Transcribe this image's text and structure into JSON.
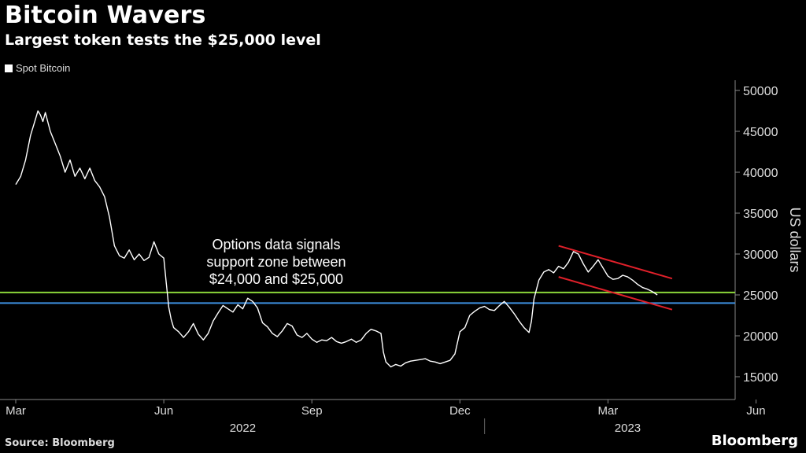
{
  "header": {
    "title": "Bitcoin Wavers",
    "subtitle": "Largest token tests the $25,000 level"
  },
  "footer": {
    "source": "Source: Bloomberg",
    "brand": "Bloomberg"
  },
  "colors": {
    "line": "#ffffff",
    "support_upper": "#8cd63a",
    "support_lower": "#3d8fe0",
    "channel": "#e0202a"
  },
  "chart_data": {
    "type": "line",
    "title": "Bitcoin Wavers",
    "subtitle": "Largest token tests the $25,000 level",
    "ylabel": "US dollars",
    "ylim": [
      12000,
      52000
    ],
    "yticks": [
      15000,
      20000,
      25000,
      30000,
      35000,
      40000,
      45000,
      50000
    ],
    "xrange": [
      0,
      15.8
    ],
    "month_ticks": [
      {
        "x": 0,
        "label": "Mar"
      },
      {
        "x": 3,
        "label": "Jun"
      },
      {
        "x": 6,
        "label": "Sep"
      },
      {
        "x": 9,
        "label": "Dec"
      },
      {
        "x": 12,
        "label": "Mar"
      },
      {
        "x": 15,
        "label": "Jun"
      }
    ],
    "year_labels": [
      {
        "x": 4.6,
        "label": "2022"
      },
      {
        "x": 12.4,
        "label": "2023"
      }
    ],
    "year_divider_x": 9.5,
    "legend": [
      "Spot Bitcoin"
    ],
    "series": [
      {
        "name": "Spot Bitcoin",
        "points": [
          [
            0.0,
            38500
          ],
          [
            0.1,
            39500
          ],
          [
            0.2,
            41500
          ],
          [
            0.3,
            44500
          ],
          [
            0.4,
            46500
          ],
          [
            0.45,
            47500
          ],
          [
            0.5,
            47000
          ],
          [
            0.55,
            46200
          ],
          [
            0.6,
            47300
          ],
          [
            0.7,
            45000
          ],
          [
            0.8,
            43500
          ],
          [
            0.9,
            42000
          ],
          [
            1.0,
            40000
          ],
          [
            1.1,
            41500
          ],
          [
            1.2,
            39500
          ],
          [
            1.3,
            40500
          ],
          [
            1.4,
            39200
          ],
          [
            1.5,
            40500
          ],
          [
            1.6,
            39000
          ],
          [
            1.7,
            38200
          ],
          [
            1.8,
            37000
          ],
          [
            1.9,
            34500
          ],
          [
            2.0,
            31000
          ],
          [
            2.1,
            29800
          ],
          [
            2.2,
            29500
          ],
          [
            2.3,
            30500
          ],
          [
            2.4,
            29300
          ],
          [
            2.5,
            30000
          ],
          [
            2.6,
            29200
          ],
          [
            2.7,
            29600
          ],
          [
            2.8,
            31500
          ],
          [
            2.9,
            30000
          ],
          [
            3.0,
            29500
          ],
          [
            3.05,
            26500
          ],
          [
            3.1,
            23500
          ],
          [
            3.15,
            22000
          ],
          [
            3.2,
            21000
          ],
          [
            3.3,
            20500
          ],
          [
            3.4,
            19800
          ],
          [
            3.5,
            20500
          ],
          [
            3.6,
            21500
          ],
          [
            3.7,
            20200
          ],
          [
            3.8,
            19500
          ],
          [
            3.9,
            20300
          ],
          [
            4.0,
            21800
          ],
          [
            4.1,
            22800
          ],
          [
            4.2,
            23700
          ],
          [
            4.3,
            23300
          ],
          [
            4.4,
            22900
          ],
          [
            4.5,
            23800
          ],
          [
            4.6,
            23300
          ],
          [
            4.7,
            24600
          ],
          [
            4.8,
            24200
          ],
          [
            4.9,
            23400
          ],
          [
            5.0,
            21600
          ],
          [
            5.1,
            21100
          ],
          [
            5.2,
            20300
          ],
          [
            5.3,
            19900
          ],
          [
            5.4,
            20600
          ],
          [
            5.5,
            21500
          ],
          [
            5.6,
            21200
          ],
          [
            5.7,
            20100
          ],
          [
            5.8,
            19800
          ],
          [
            5.9,
            20300
          ],
          [
            6.0,
            19600
          ],
          [
            6.1,
            19200
          ],
          [
            6.2,
            19500
          ],
          [
            6.3,
            19400
          ],
          [
            6.4,
            19800
          ],
          [
            6.5,
            19300
          ],
          [
            6.6,
            19100
          ],
          [
            6.7,
            19300
          ],
          [
            6.8,
            19600
          ],
          [
            6.9,
            19200
          ],
          [
            7.0,
            19500
          ],
          [
            7.1,
            20300
          ],
          [
            7.2,
            20800
          ],
          [
            7.3,
            20600
          ],
          [
            7.4,
            20300
          ],
          [
            7.45,
            18000
          ],
          [
            7.5,
            16800
          ],
          [
            7.6,
            16200
          ],
          [
            7.7,
            16500
          ],
          [
            7.8,
            16300
          ],
          [
            7.9,
            16700
          ],
          [
            8.0,
            16900
          ],
          [
            8.1,
            17000
          ],
          [
            8.2,
            17100
          ],
          [
            8.3,
            17200
          ],
          [
            8.4,
            16900
          ],
          [
            8.5,
            16800
          ],
          [
            8.6,
            16600
          ],
          [
            8.7,
            16800
          ],
          [
            8.8,
            17000
          ],
          [
            8.9,
            17800
          ],
          [
            9.0,
            20500
          ],
          [
            9.1,
            21000
          ],
          [
            9.2,
            22500
          ],
          [
            9.3,
            23000
          ],
          [
            9.4,
            23400
          ],
          [
            9.5,
            23600
          ],
          [
            9.6,
            23200
          ],
          [
            9.7,
            23100
          ],
          [
            9.8,
            23700
          ],
          [
            9.9,
            24200
          ],
          [
            10.0,
            23500
          ],
          [
            10.1,
            22700
          ],
          [
            10.2,
            21800
          ],
          [
            10.3,
            21000
          ],
          [
            10.4,
            20400
          ],
          [
            10.45,
            21800
          ],
          [
            10.5,
            24500
          ],
          [
            10.6,
            26800
          ],
          [
            10.7,
            27800
          ],
          [
            10.8,
            28100
          ],
          [
            10.9,
            27700
          ],
          [
            11.0,
            28500
          ],
          [
            11.1,
            28200
          ],
          [
            11.2,
            29000
          ],
          [
            11.3,
            30300
          ],
          [
            11.4,
            30000
          ],
          [
            11.5,
            28800
          ],
          [
            11.6,
            27800
          ],
          [
            11.7,
            28500
          ],
          [
            11.8,
            29300
          ],
          [
            11.9,
            28300
          ],
          [
            12.0,
            27300
          ],
          [
            12.1,
            26900
          ],
          [
            12.2,
            27000
          ],
          [
            12.3,
            27400
          ],
          [
            12.4,
            27200
          ],
          [
            12.5,
            26800
          ],
          [
            12.6,
            26300
          ],
          [
            12.7,
            25900
          ],
          [
            12.8,
            25700
          ],
          [
            12.9,
            25400
          ],
          [
            13.0,
            25000
          ]
        ]
      }
    ],
    "reference_lines": [
      {
        "name": "support-upper",
        "y": 25300
      },
      {
        "name": "support-lower",
        "y": 24000
      }
    ],
    "channel_lines": [
      {
        "name": "channel-upper",
        "from": [
          11.0,
          31000
        ],
        "to": [
          13.3,
          27000
        ]
      },
      {
        "name": "channel-lower",
        "from": [
          11.0,
          27200
        ],
        "to": [
          13.3,
          23200
        ]
      }
    ],
    "annotation": {
      "lines": [
        "Options data signals",
        "support zone between",
        "$24,000 and $25,000"
      ]
    }
  }
}
